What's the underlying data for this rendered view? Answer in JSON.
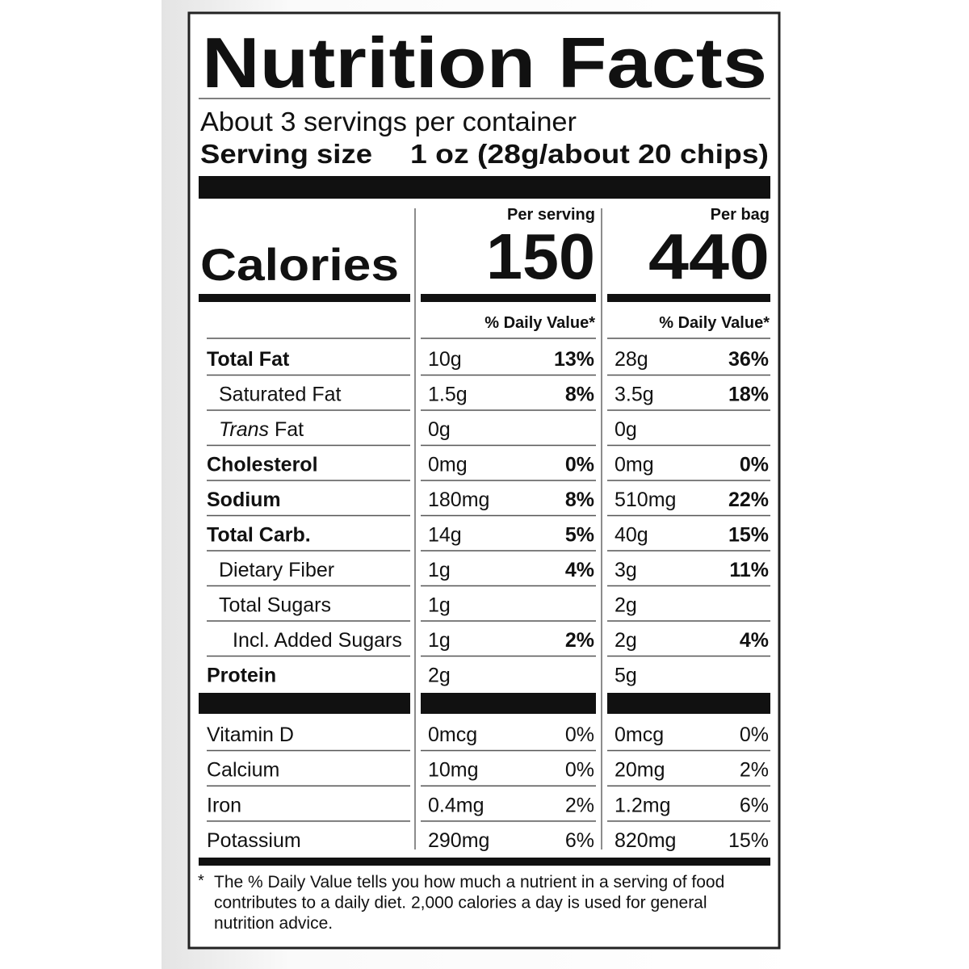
{
  "title": "Nutrition Facts",
  "servings": "About 3 servings per container",
  "serving_size": {
    "label": "Serving size",
    "value": "1 oz (28g/about 20 chips)"
  },
  "calories": {
    "label": "Calories",
    "columns": [
      {
        "header": "Per serving",
        "value": "150",
        "dv_header": "% Daily Value*"
      },
      {
        "header": "Per bag",
        "value": "440",
        "dv_header": "% Daily Value*"
      }
    ]
  },
  "nutrients": [
    {
      "name": "Total Fat",
      "bold": true,
      "indent": 0,
      "values": [
        [
          "10g",
          "13%"
        ],
        [
          "28g",
          "36%"
        ]
      ]
    },
    {
      "name": "Saturated Fat",
      "bold": false,
      "indent": 1,
      "values": [
        [
          "1.5g",
          "8%"
        ],
        [
          "3.5g",
          "18%"
        ]
      ]
    },
    {
      "prefix": "Trans",
      "name": " Fat",
      "bold": false,
      "indent": 1,
      "values": [
        [
          "0g"
        ],
        [
          "0g"
        ]
      ]
    },
    {
      "name": "Cholesterol",
      "bold": true,
      "indent": 0,
      "values": [
        [
          "0mg",
          "0%"
        ],
        [
          "0mg",
          "0%"
        ]
      ]
    },
    {
      "name": "Sodium",
      "bold": true,
      "indent": 0,
      "values": [
        [
          "180mg",
          "8%"
        ],
        [
          "510mg",
          "22%"
        ]
      ]
    },
    {
      "name": "Total Carb.",
      "bold": true,
      "indent": 0,
      "values": [
        [
          "14g",
          "5%"
        ],
        [
          "40g",
          "15%"
        ]
      ]
    },
    {
      "name": "Dietary Fiber",
      "bold": false,
      "indent": 1,
      "values": [
        [
          "1g",
          "4%"
        ],
        [
          "3g",
          "11%"
        ]
      ]
    },
    {
      "name": "Total Sugars",
      "bold": false,
      "indent": 1,
      "values": [
        [
          "1g"
        ],
        [
          "2g"
        ]
      ]
    },
    {
      "name": "Incl. Added Sugars",
      "bold": false,
      "indent": 2,
      "values": [
        [
          "1g",
          "2%"
        ],
        [
          "2g",
          "4%"
        ]
      ]
    },
    {
      "name": "Protein",
      "bold": true,
      "indent": 0,
      "values": [
        [
          "2g"
        ],
        [
          "5g"
        ]
      ]
    }
  ],
  "vitamins": [
    {
      "name": "Vitamin D",
      "values": [
        [
          "0mcg",
          "0%"
        ],
        [
          "0mcg",
          "0%"
        ]
      ]
    },
    {
      "name": "Calcium",
      "values": [
        [
          "10mg",
          "0%"
        ],
        [
          "20mg",
          "2%"
        ]
      ]
    },
    {
      "name": "Iron",
      "values": [
        [
          "0.4mg",
          "2%"
        ],
        [
          "1.2mg",
          "6%"
        ]
      ]
    },
    {
      "name": "Potassium",
      "values": [
        [
          "290mg",
          "6%"
        ],
        [
          "820mg",
          "15%"
        ]
      ]
    }
  ],
  "footnote": {
    "mark": "*",
    "lines": [
      "The % Daily Value tells you how much a nutrient in a serving of food",
      "contributes to a daily diet. 2,000 calories a day is used for general",
      "nutrition advice."
    ]
  }
}
